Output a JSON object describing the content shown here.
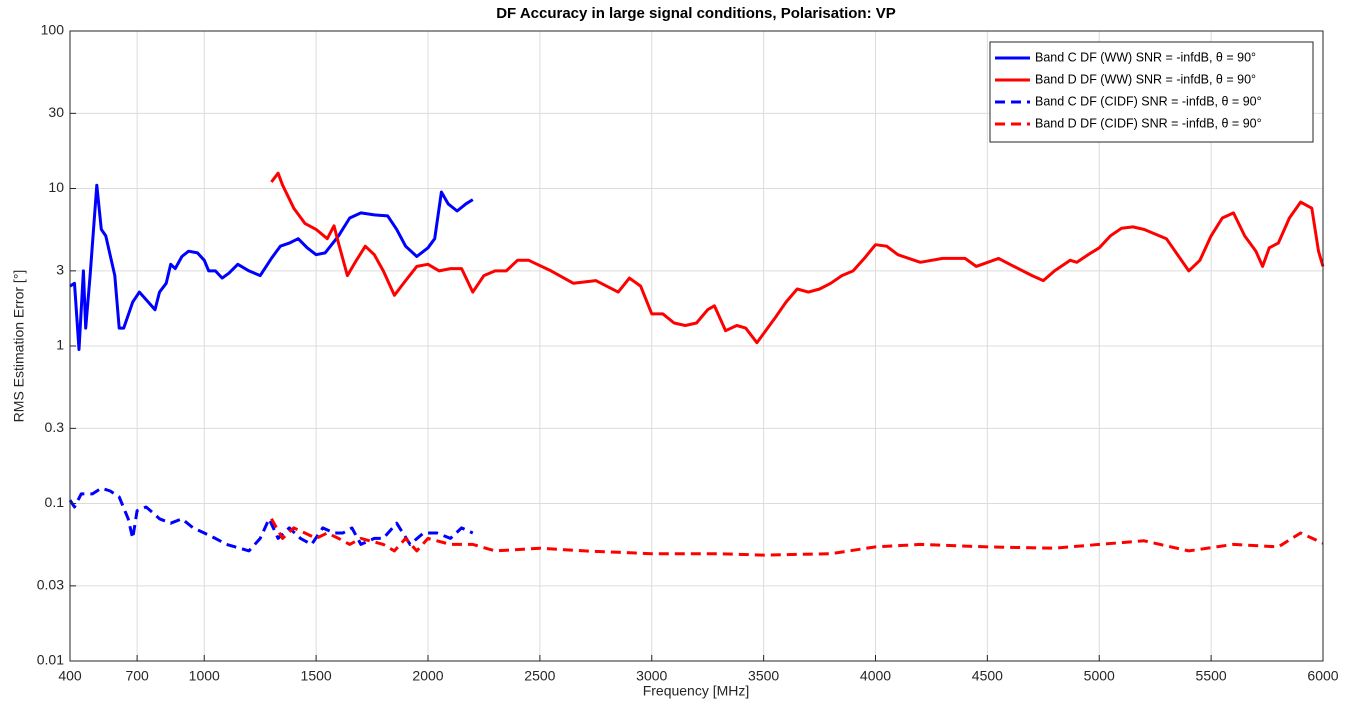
{
  "chart_data": {
    "type": "line",
    "title": "DF Accuracy in large signal conditions, Polarisation: VP",
    "x_label": "Frequency [MHz]",
    "y_label": "RMS Estimation Error [°]",
    "xlim": [
      400,
      6000
    ],
    "xticks": [
      400,
      700,
      1000,
      1500,
      2000,
      2500,
      3000,
      3500,
      4000,
      4500,
      5000,
      5500,
      6000
    ],
    "ylim": [
      0.01,
      100
    ],
    "yticks": [
      0.01,
      0.03,
      0.1,
      0.3,
      1,
      3,
      10,
      30,
      100
    ],
    "y_log": true,
    "grid": true,
    "legend": "northeast",
    "series": [
      {
        "name": "Band C DF (WW) SNR = -infdB, θ = 90°",
        "color": "#0000ff",
        "line_style": "solid",
        "x": [
          400,
          420,
          440,
          460,
          470,
          490,
          520,
          540,
          560,
          600,
          620,
          640,
          680,
          710,
          750,
          780,
          800,
          830,
          850,
          870,
          900,
          930,
          970,
          1000,
          1020,
          1050,
          1080,
          1110,
          1150,
          1200,
          1250,
          1300,
          1340,
          1380,
          1420,
          1460,
          1500,
          1540,
          1600,
          1650,
          1700,
          1760,
          1820,
          1860,
          1900,
          1950,
          2000,
          2030,
          2060,
          2090,
          2130,
          2170,
          2200
        ],
        "values": [
          2.4,
          2.5,
          0.95,
          3.0,
          1.3,
          2.8,
          10.5,
          5.5,
          5,
          2.8,
          1.3,
          1.3,
          1.9,
          2.2,
          1.9,
          1.7,
          2.2,
          2.5,
          3.3,
          3.1,
          3.7,
          4.0,
          3.9,
          3.5,
          3.0,
          3.0,
          2.7,
          2.9,
          3.3,
          3.0,
          2.8,
          3.6,
          4.3,
          4.5,
          4.8,
          4.2,
          3.8,
          3.9,
          5.0,
          6.5,
          7.0,
          6.8,
          6.7,
          5.5,
          4.3,
          3.7,
          4.2,
          4.8,
          9.5,
          8.0,
          7.2,
          8.0,
          8.5
        ]
      },
      {
        "name": "Band D DF (WW) SNR = -infdB, θ = 90°",
        "color": "#ff0000",
        "line_style": "solid",
        "x": [
          1300,
          1330,
          1350,
          1400,
          1450,
          1500,
          1550,
          1580,
          1600,
          1640,
          1680,
          1720,
          1760,
          1800,
          1850,
          1900,
          1950,
          2000,
          2050,
          2100,
          2150,
          2200,
          2250,
          2300,
          2350,
          2400,
          2450,
          2550,
          2650,
          2750,
          2850,
          2900,
          2950,
          3000,
          3050,
          3100,
          3150,
          3200,
          3250,
          3280,
          3330,
          3380,
          3420,
          3470,
          3550,
          3600,
          3650,
          3700,
          3750,
          3800,
          3850,
          3900,
          3950,
          4000,
          4050,
          4100,
          4200,
          4300,
          4400,
          4450,
          4550,
          4600,
          4700,
          4750,
          4800,
          4870,
          4900,
          4950,
          5000,
          5050,
          5100,
          5150,
          5200,
          5300,
          5400,
          5450,
          5500,
          5550,
          5600,
          5650,
          5700,
          5730,
          5760,
          5800,
          5850,
          5900,
          5950,
          5980,
          6000
        ],
        "values": [
          11,
          12.5,
          10.5,
          7.5,
          6,
          5.5,
          4.8,
          5.8,
          4.5,
          2.8,
          3.5,
          4.3,
          3.8,
          3.0,
          2.1,
          2.6,
          3.2,
          3.3,
          3.0,
          3.1,
          3.1,
          2.2,
          2.8,
          3.0,
          3.0,
          3.5,
          3.5,
          3.0,
          2.5,
          2.6,
          2.2,
          2.7,
          2.4,
          1.6,
          1.6,
          1.4,
          1.35,
          1.4,
          1.7,
          1.8,
          1.25,
          1.35,
          1.3,
          1.05,
          1.5,
          1.9,
          2.3,
          2.2,
          2.3,
          2.5,
          2.8,
          3.0,
          3.6,
          4.4,
          4.3,
          3.8,
          3.4,
          3.6,
          3.6,
          3.2,
          3.6,
          3.3,
          2.8,
          2.6,
          3.0,
          3.5,
          3.4,
          3.8,
          4.2,
          5.0,
          5.6,
          5.7,
          5.5,
          4.8,
          3.0,
          3.5,
          5.0,
          6.5,
          7.0,
          5.0,
          4.0,
          3.2,
          4.2,
          4.5,
          6.5,
          8.2,
          7.5,
          4.0,
          3.2
        ]
      },
      {
        "name": "Band C DF (CIDF) SNR = -infdB, θ = 90°",
        "color": "#0000ff",
        "line_style": "dashed",
        "x": [
          400,
          420,
          450,
          500,
          540,
          580,
          620,
          660,
          680,
          700,
          740,
          780,
          800,
          850,
          900,
          950,
          1000,
          1050,
          1100,
          1200,
          1250,
          1290,
          1330,
          1380,
          1430,
          1480,
          1530,
          1580,
          1620,
          1660,
          1700,
          1760,
          1800,
          1860,
          1920,
          1980,
          2040,
          2100,
          2150,
          2200
        ],
        "values": [
          0.105,
          0.095,
          0.115,
          0.115,
          0.125,
          0.12,
          0.11,
          0.08,
          0.06,
          0.09,
          0.095,
          0.085,
          0.08,
          0.075,
          0.08,
          0.07,
          0.065,
          0.06,
          0.055,
          0.05,
          0.06,
          0.08,
          0.06,
          0.07,
          0.06,
          0.055,
          0.07,
          0.065,
          0.065,
          0.07,
          0.055,
          0.06,
          0.06,
          0.075,
          0.055,
          0.065,
          0.065,
          0.06,
          0.07,
          0.065
        ]
      },
      {
        "name": "Band D DF (CIDF) SNR = -infdB, θ = 90°",
        "color": "#ff0000",
        "line_style": "dashed",
        "x": [
          1300,
          1350,
          1400,
          1450,
          1500,
          1550,
          1600,
          1650,
          1700,
          1800,
          1850,
          1900,
          1950,
          2000,
          2100,
          2200,
          2300,
          2500,
          2700,
          3000,
          3300,
          3500,
          3800,
          4000,
          4200,
          4500,
          4800,
          5000,
          5200,
          5400,
          5600,
          5800,
          5900,
          6000
        ],
        "values": [
          0.08,
          0.06,
          0.07,
          0.065,
          0.06,
          0.065,
          0.06,
          0.055,
          0.06,
          0.055,
          0.05,
          0.06,
          0.05,
          0.06,
          0.055,
          0.055,
          0.05,
          0.052,
          0.05,
          0.048,
          0.048,
          0.047,
          0.048,
          0.053,
          0.055,
          0.053,
          0.052,
          0.055,
          0.058,
          0.05,
          0.055,
          0.053,
          0.065,
          0.056
        ]
      }
    ]
  }
}
